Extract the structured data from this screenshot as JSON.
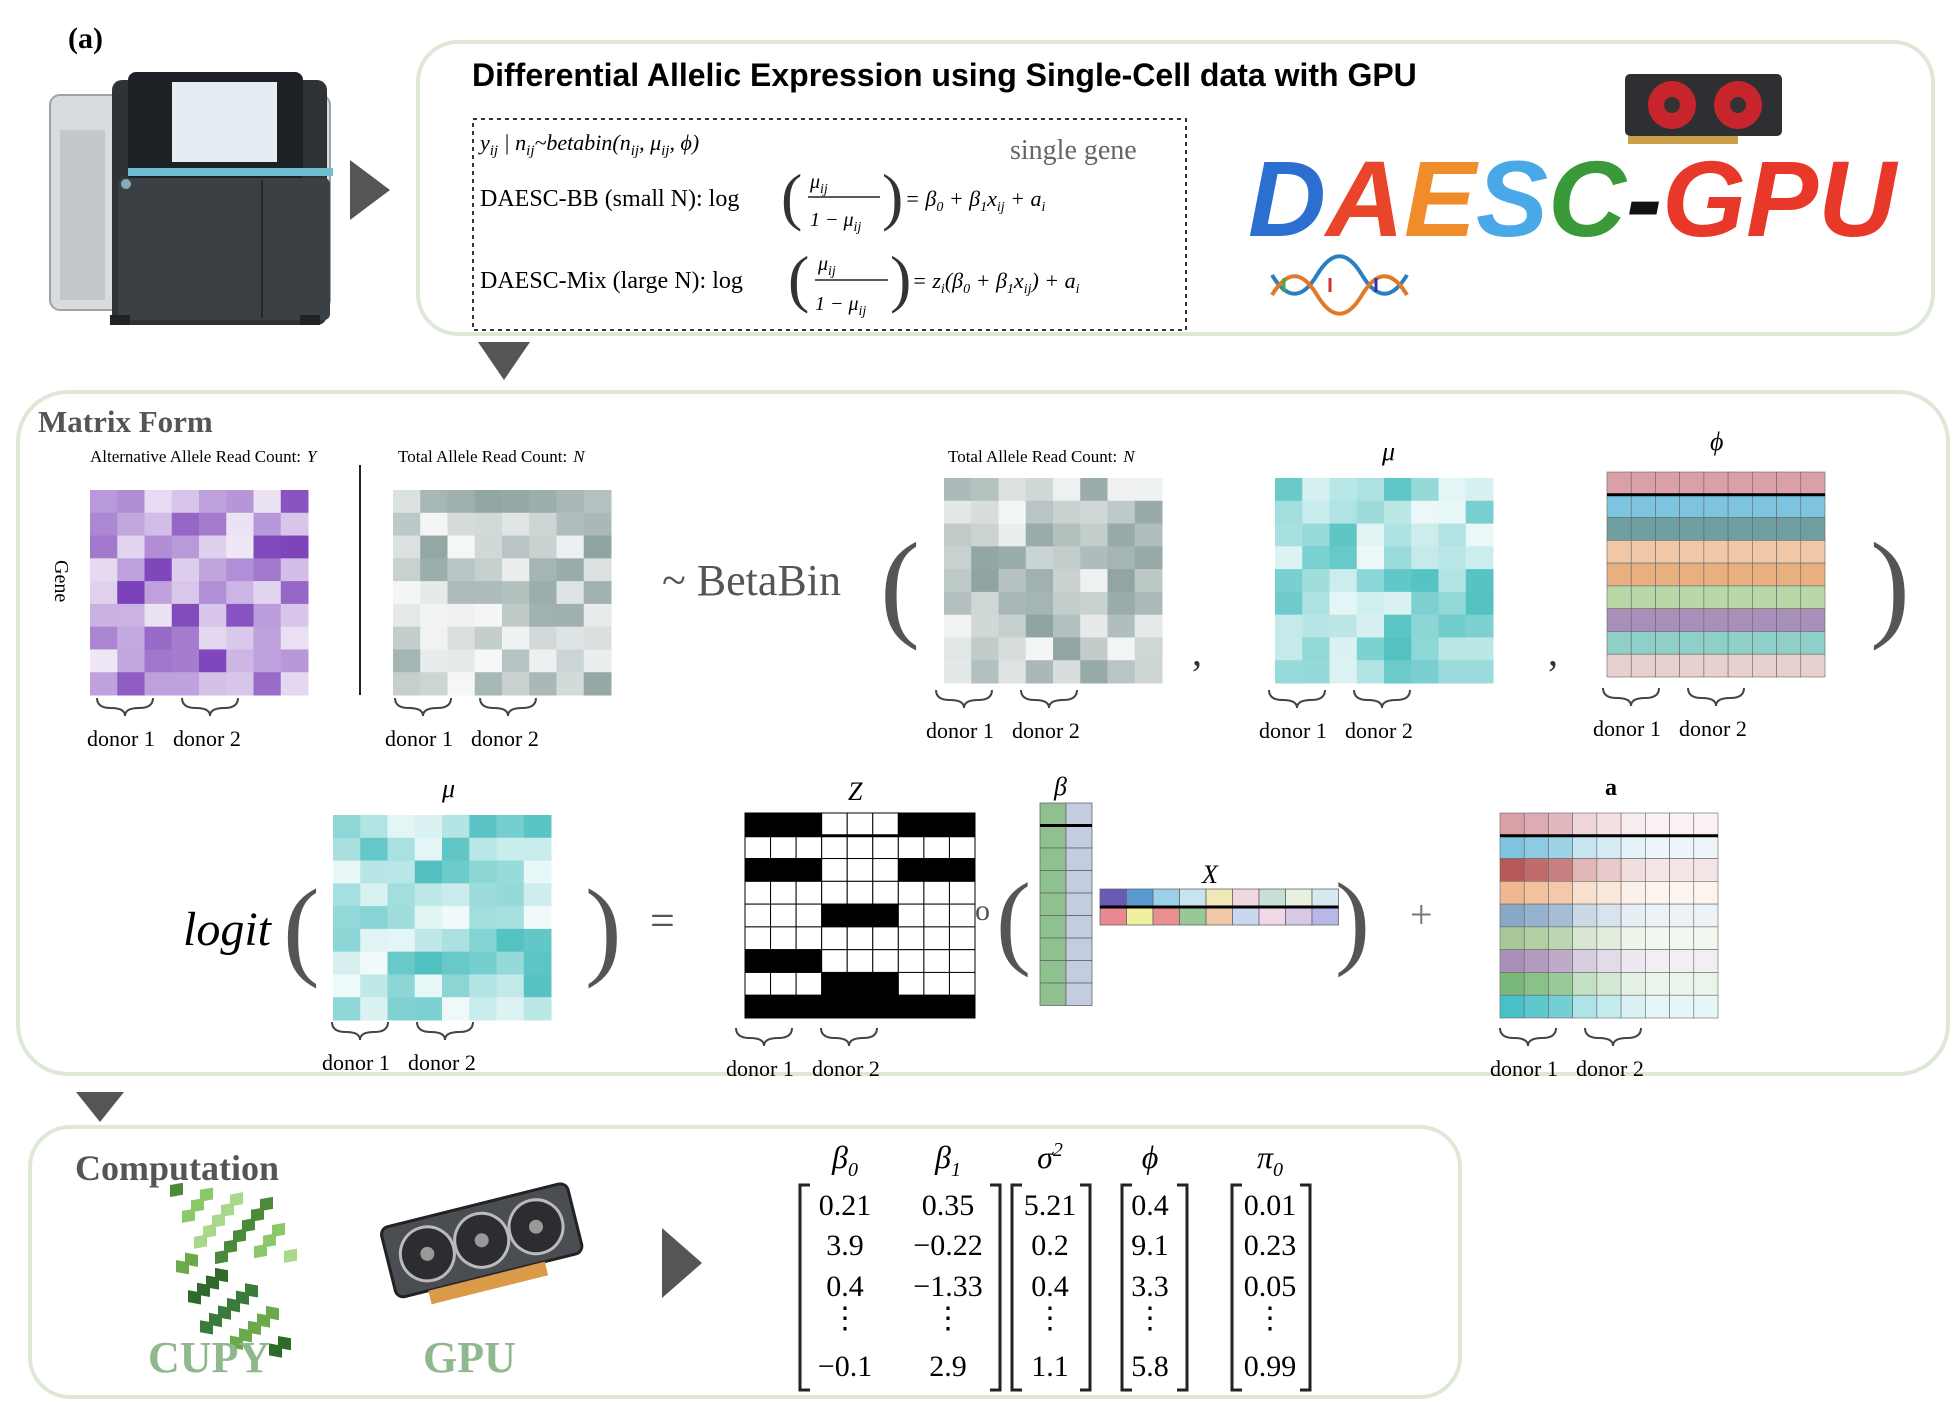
{
  "panel_label": "(a)",
  "header": {
    "title": "Differential Allelic Expression using Single-Cell data with GPU",
    "brand": {
      "letters": [
        "D",
        "A",
        "E",
        "S",
        "C",
        "-",
        "G",
        "P",
        "U"
      ],
      "colors": [
        "#2c6fd1",
        "#e8452a",
        "#f08c2a",
        "#48a8e8",
        "#3a9a3a",
        "#111111",
        "#e8382a",
        "#e8382a",
        "#e8382a"
      ]
    }
  },
  "formulas": {
    "model": "y",
    "single_gene": "single gene",
    "bb_label": "DAESC-BB (small N): log",
    "bb_rhs": "= β",
    "mix_label": "DAESC-Mix (large N): log",
    "mix_rhs": "= z"
  },
  "matrix_form": {
    "title": "Matrix Form",
    "y_label": "Alternative Allele Read Count:",
    "y_sym": "Y",
    "n_label": "Total Allele Read Count:",
    "n_sym": "N",
    "gene_label": "Gene",
    "betabin": "~ BetaBin",
    "mu": "μ",
    "phi": "ϕ",
    "logit": "logit",
    "equals": "=",
    "z": "Z",
    "beta": "β",
    "x": "X",
    "circ": "o",
    "plus": "+",
    "a": "a",
    "donor1": "donor 1",
    "donor2": "donor 2"
  },
  "computation": {
    "title": "Computation",
    "cupy": "CUPY",
    "gpu": "GPU",
    "columns": [
      {
        "header": "β0",
        "values": [
          "0.21",
          "3.9",
          "0.4",
          "⋮",
          "−0.1"
        ]
      },
      {
        "header": "β1",
        "values": [
          "0.35",
          "−0.22",
          "−1.33",
          "⋮",
          "2.9"
        ]
      },
      {
        "header": "σ2",
        "values": [
          "5.21",
          "0.2",
          "0.4",
          "⋮",
          "1.1"
        ]
      },
      {
        "header": "ϕ",
        "values": [
          "0.4",
          "9.1",
          "3.3",
          "⋮",
          "5.8"
        ]
      },
      {
        "header": "π0",
        "values": [
          "0.01",
          "0.23",
          "0.05",
          "⋮",
          "0.99"
        ]
      }
    ]
  },
  "colors": {
    "panel_border": "#dde8d6",
    "arrow": "#555555",
    "purple": "#7a3fb8",
    "gray": "#8fa3a1",
    "teal": "#4fc0c0",
    "green_text": "#8fb88f"
  }
}
